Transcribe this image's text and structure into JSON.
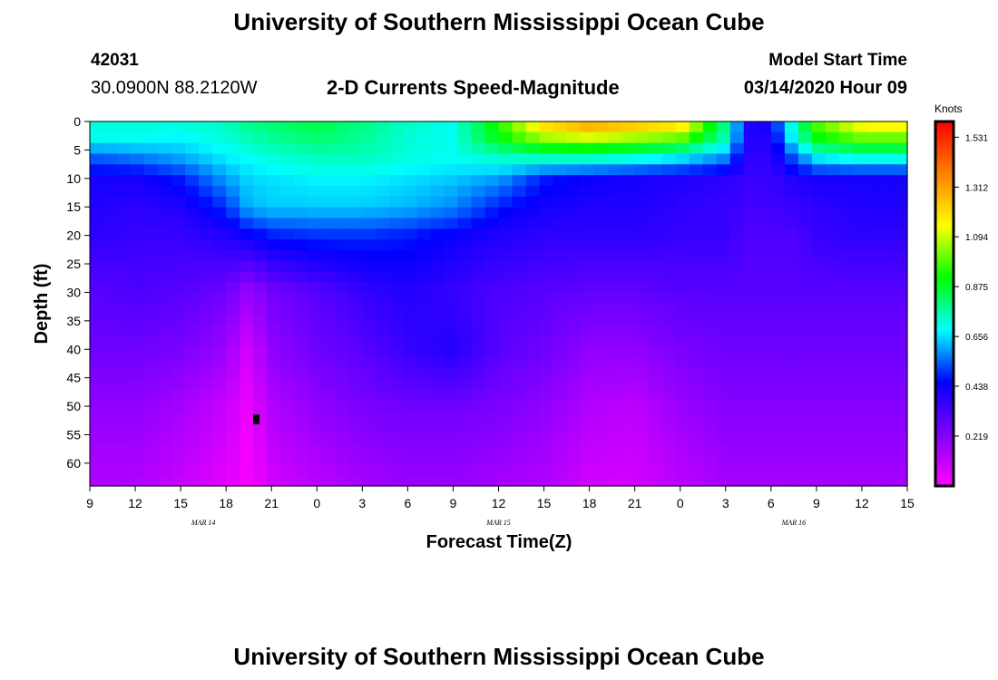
{
  "header": {
    "title": "University of Southern Mississippi Ocean Cube",
    "station_id": "42031",
    "station_location": "30.0900N 88.2120W",
    "plot_title": "2-D Currents Speed-Magnitude",
    "model_start_label": "Model Start Time",
    "model_start_value": "03/14/2020 Hour 09"
  },
  "footer": {
    "title": "University of Southern Mississippi Ocean Cube"
  },
  "chart_data": {
    "type": "heatmap",
    "title": "2-D Currents Speed-Magnitude",
    "xlabel": "Forecast Time(Z)",
    "ylabel": "Depth (ft)",
    "x_tick_labels": [
      "9",
      "12",
      "15",
      "18",
      "21",
      "0",
      "3",
      "6",
      "9",
      "12",
      "15",
      "18",
      "21",
      "0",
      "3",
      "6",
      "9",
      "12",
      "15"
    ],
    "x_range_hours": [
      0,
      54
    ],
    "date_labels": [
      {
        "label": "MAR 14",
        "hour": 7.5
      },
      {
        "label": "MAR 15",
        "hour": 27
      },
      {
        "label": "MAR 16",
        "hour": 46.5
      }
    ],
    "y_ticks": [
      0,
      5,
      10,
      15,
      20,
      25,
      30,
      35,
      40,
      45,
      50,
      55,
      60
    ],
    "ylim": [
      0,
      64
    ],
    "y_inverted": true,
    "colorbar": {
      "label": "Knots",
      "ticks": [
        "1.531",
        "1.312",
        "1.094",
        "0.875",
        "0.656",
        "0.438",
        "0.219"
      ],
      "tick_values": [
        1.531,
        1.312,
        1.094,
        0.875,
        0.656,
        0.438,
        0.219
      ],
      "range": [
        0,
        1.6
      ]
    },
    "speed_field": {
      "x_hours": [
        0,
        3,
        6,
        9,
        10.5,
        12,
        15,
        18,
        21,
        24,
        27,
        30,
        33,
        36,
        39,
        42,
        43.5,
        45,
        46.5,
        48,
        51,
        54
      ],
      "depths_ft": [
        0,
        3,
        6,
        10,
        15,
        20,
        30,
        40,
        50,
        64
      ],
      "values_knots": [
        [
          0.72,
          0.72,
          0.72,
          0.74,
          0.8,
          0.82,
          0.86,
          0.8,
          0.74,
          0.7,
          0.95,
          1.25,
          1.35,
          1.3,
          1.25,
          0.8,
          0.4,
          0.45,
          0.75,
          1.0,
          1.2,
          1.2
        ],
        [
          0.7,
          0.7,
          0.68,
          0.72,
          0.75,
          0.78,
          0.82,
          0.78,
          0.72,
          0.7,
          0.9,
          1.05,
          1.1,
          1.05,
          1.0,
          0.75,
          0.4,
          0.4,
          0.7,
          0.9,
          1.0,
          1.0
        ],
        [
          0.55,
          0.58,
          0.62,
          0.68,
          0.7,
          0.72,
          0.75,
          0.75,
          0.72,
          0.7,
          0.75,
          0.78,
          0.78,
          0.75,
          0.7,
          0.6,
          0.38,
          0.38,
          0.55,
          0.7,
          0.75,
          0.75
        ],
        [
          0.42,
          0.42,
          0.48,
          0.6,
          0.65,
          0.66,
          0.68,
          0.68,
          0.66,
          0.64,
          0.6,
          0.48,
          0.44,
          0.42,
          0.4,
          0.38,
          0.36,
          0.36,
          0.4,
          0.42,
          0.42,
          0.42
        ],
        [
          0.4,
          0.38,
          0.4,
          0.5,
          0.62,
          0.64,
          0.64,
          0.64,
          0.62,
          0.58,
          0.48,
          0.42,
          0.4,
          0.4,
          0.38,
          0.36,
          0.34,
          0.34,
          0.36,
          0.38,
          0.4,
          0.4
        ],
        [
          0.38,
          0.36,
          0.36,
          0.4,
          0.44,
          0.48,
          0.5,
          0.5,
          0.48,
          0.44,
          0.4,
          0.38,
          0.38,
          0.38,
          0.36,
          0.36,
          0.32,
          0.32,
          0.32,
          0.36,
          0.38,
          0.38
        ],
        [
          0.3,
          0.32,
          0.3,
          0.26,
          0.18,
          0.25,
          0.3,
          0.36,
          0.4,
          0.36,
          0.32,
          0.3,
          0.28,
          0.28,
          0.3,
          0.3,
          0.3,
          0.3,
          0.3,
          0.3,
          0.3,
          0.3
        ],
        [
          0.26,
          0.26,
          0.24,
          0.18,
          0.08,
          0.2,
          0.26,
          0.3,
          0.36,
          0.4,
          0.3,
          0.26,
          0.2,
          0.2,
          0.24,
          0.26,
          0.26,
          0.26,
          0.26,
          0.26,
          0.26,
          0.26
        ],
        [
          0.2,
          0.2,
          0.16,
          0.1,
          0.03,
          0.14,
          0.2,
          0.24,
          0.26,
          0.26,
          0.24,
          0.2,
          0.14,
          0.12,
          0.18,
          0.22,
          0.22,
          0.22,
          0.22,
          0.22,
          0.22,
          0.22
        ],
        [
          0.14,
          0.14,
          0.1,
          0.05,
          0.01,
          0.08,
          0.12,
          0.16,
          0.18,
          0.18,
          0.16,
          0.14,
          0.08,
          0.08,
          0.12,
          0.16,
          0.16,
          0.16,
          0.16,
          0.16,
          0.16,
          0.16
        ]
      ]
    },
    "grid": false,
    "colors": {
      "scale": [
        "#ff00ff",
        "#8000ff",
        "#0000ff",
        "#00ffff",
        "#00ff00",
        "#ffff00",
        "#ff8000",
        "#ff0000"
      ]
    }
  }
}
